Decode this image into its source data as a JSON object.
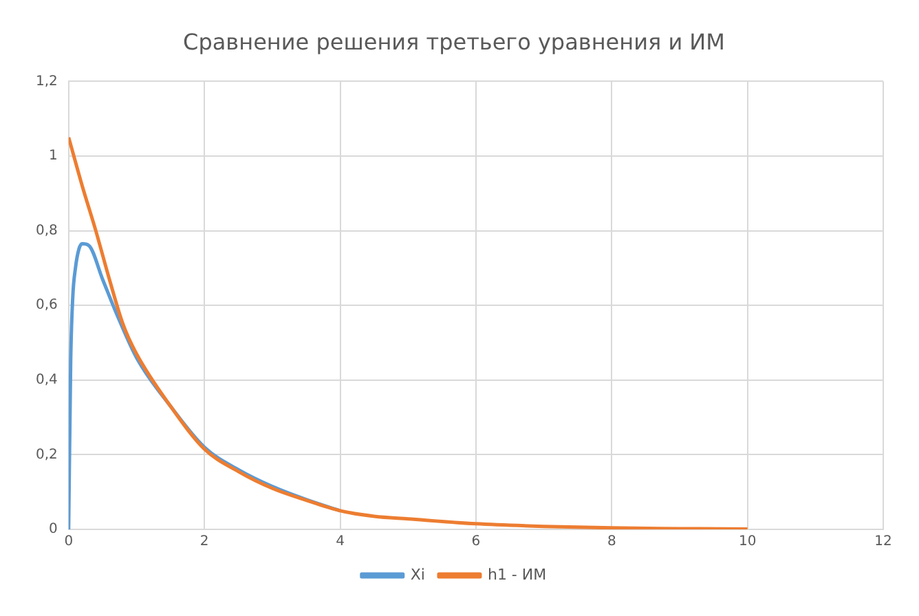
{
  "chart_data": {
    "type": "line",
    "title": "Сравнение решения третьего уравнения и ИМ",
    "xlim": [
      0,
      12
    ],
    "xticks": [
      0,
      2,
      4,
      6,
      8,
      10,
      12
    ],
    "ylim": [
      0,
      1.2
    ],
    "yticks": [
      {
        "value": 0,
        "label": "0"
      },
      {
        "value": 0.2,
        "label": "0,2"
      },
      {
        "value": 0.4,
        "label": "0,4"
      },
      {
        "value": 0.6,
        "label": "0,6"
      },
      {
        "value": 0.8,
        "label": "0,8"
      },
      {
        "value": 1,
        "label": "1"
      },
      {
        "value": 1.2,
        "label": "1,2"
      }
    ],
    "grid": true,
    "legend": "bottom",
    "marker": "none",
    "series": [
      {
        "name": "Xi",
        "color": "#5b9bd5",
        "x": [
          0,
          0.03,
          0.06,
          0.1,
          0.15,
          0.2,
          0.3,
          0.5,
          0.7,
          1,
          1.5,
          2,
          2.5,
          3,
          3.5,
          4
        ],
        "values": [
          0,
          0.45,
          0.62,
          0.7,
          0.75,
          0.765,
          0.76,
          0.67,
          0.58,
          0.46,
          0.33,
          0.22,
          0.16,
          0.115,
          0.08,
          0.05
        ]
      },
      {
        "name": "h1 - ИМ",
        "color": "#ed7d31",
        "x": [
          0,
          0.2,
          0.4,
          0.6,
          0.8,
          1,
          1.5,
          2,
          2.5,
          3,
          3.5,
          4,
          4.5,
          5,
          6,
          7,
          8,
          9,
          10
        ],
        "values": [
          1.05,
          0.92,
          0.8,
          0.67,
          0.55,
          0.47,
          0.33,
          0.215,
          0.155,
          0.11,
          0.078,
          0.05,
          0.035,
          0.028,
          0.015,
          0.008,
          0.004,
          0.002,
          0.001
        ]
      }
    ]
  }
}
